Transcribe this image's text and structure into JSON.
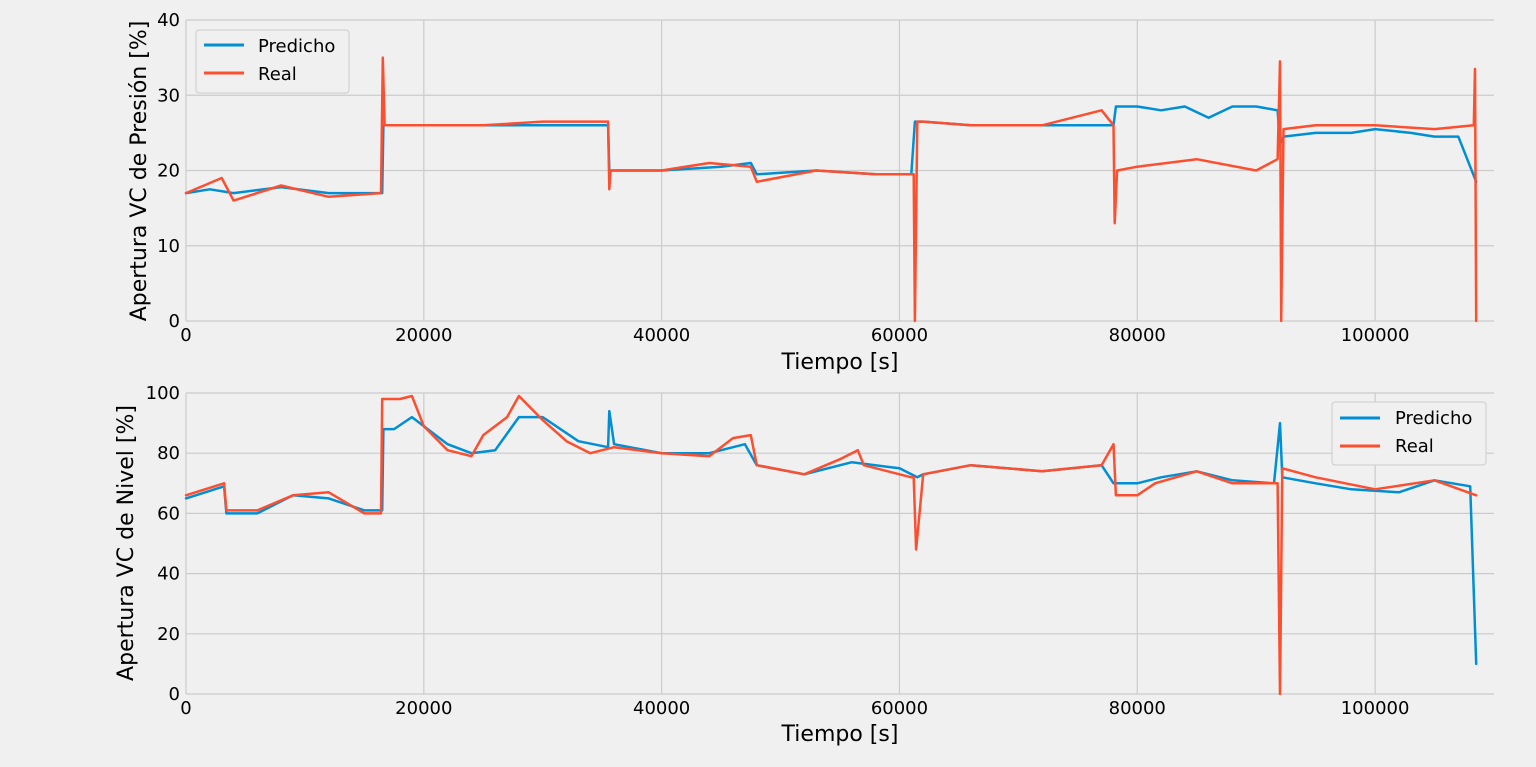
{
  "chart_data": [
    {
      "type": "line",
      "title": "",
      "xlabel": "Tiempo [s]",
      "ylabel": "Apertura VC de Presión [%]",
      "xlim": [
        0,
        110000
      ],
      "ylim": [
        0,
        40
      ],
      "xticks": [
        0,
        20000,
        40000,
        60000,
        80000,
        100000
      ],
      "yticks": [
        0,
        10,
        20,
        30,
        40
      ],
      "grid": true,
      "legend_position": "upper-left",
      "series": [
        {
          "name": "Predicho",
          "color": "#008fd5",
          "x": [
            0,
            2000,
            4000,
            8000,
            12000,
            16500,
            16600,
            17000,
            25000,
            35500,
            35600,
            36000,
            40000,
            45000,
            47500,
            48000,
            53000,
            58000,
            61000,
            61300,
            62000,
            66000,
            72000,
            78000,
            78200,
            80000,
            82000,
            84000,
            86000,
            88000,
            90000,
            91800,
            92000,
            92300,
            95000,
            98000,
            100000,
            103000,
            105000,
            107000,
            108500
          ],
          "values": [
            17,
            17.5,
            17,
            17.8,
            17,
            17,
            26,
            26,
            26,
            26,
            20,
            20,
            20,
            20.5,
            21,
            19.5,
            20,
            19.5,
            19.5,
            26.5,
            26.5,
            26,
            26,
            26,
            28.5,
            28.5,
            28,
            28.5,
            27,
            28.5,
            28.5,
            28,
            23.5,
            24.5,
            25,
            25,
            25.5,
            25,
            24.5,
            24.5,
            18.5
          ]
        },
        {
          "name": "Real",
          "color": "#fc4f30",
          "x": [
            0,
            3000,
            4000,
            8000,
            12000,
            16400,
            16550,
            16700,
            17000,
            25000,
            30000,
            35500,
            35600,
            35700,
            36000,
            40000,
            44000,
            47500,
            48000,
            53000,
            58000,
            61200,
            61300,
            61500,
            62000,
            66000,
            72000,
            77000,
            78000,
            78100,
            78300,
            80000,
            85000,
            90000,
            91800,
            92000,
            92100,
            92300,
            95000,
            100000,
            105000,
            108300,
            108400,
            108500
          ],
          "values": [
            17,
            19,
            16,
            18,
            16.5,
            17,
            35,
            26,
            26,
            26,
            26.5,
            26.5,
            17.5,
            20,
            20,
            20,
            21,
            20.5,
            18.5,
            20,
            19.5,
            19.5,
            0,
            26.5,
            26.5,
            26,
            26,
            28,
            26,
            13,
            20,
            20.5,
            21.5,
            20,
            21.5,
            34.5,
            0,
            25.5,
            26,
            26,
            25.5,
            26,
            33.5,
            0
          ]
        }
      ]
    },
    {
      "type": "line",
      "title": "",
      "xlabel": "Tiempo [s]",
      "ylabel": "Apertura VC de Nivel [%]",
      "xlim": [
        0,
        110000
      ],
      "ylim": [
        0,
        100
      ],
      "xticks": [
        0,
        20000,
        40000,
        60000,
        80000,
        100000
      ],
      "yticks": [
        0,
        20,
        40,
        60,
        80,
        100
      ],
      "grid": true,
      "legend_position": "upper-right",
      "series": [
        {
          "name": "Predicho",
          "color": "#008fd5",
          "x": [
            0,
            3200,
            3400,
            6000,
            9000,
            12000,
            15000,
            16500,
            16600,
            17500,
            19000,
            22000,
            24000,
            26000,
            28000,
            30000,
            33000,
            35500,
            35600,
            36000,
            40000,
            44000,
            47000,
            48000,
            52000,
            56000,
            60000,
            61500,
            62000,
            66000,
            72000,
            77000,
            78000,
            80000,
            82000,
            85000,
            88000,
            91500,
            92000,
            92200,
            95000,
            98000,
            102000,
            105000,
            108000,
            108500
          ],
          "values": [
            65,
            69,
            60,
            60,
            66,
            65,
            61,
            61,
            88,
            88,
            92,
            83,
            80,
            81,
            92,
            92,
            84,
            82,
            94,
            83,
            80,
            80,
            83,
            76,
            73,
            77,
            75,
            72,
            73,
            76,
            74,
            76,
            70,
            70,
            72,
            74,
            71,
            70,
            90,
            72,
            70,
            68,
            67,
            71,
            69,
            10
          ]
        },
        {
          "name": "Real",
          "color": "#fc4f30",
          "x": [
            0,
            3200,
            3400,
            6000,
            9000,
            12000,
            15000,
            16400,
            16500,
            18000,
            19000,
            20000,
            22000,
            24000,
            25000,
            27000,
            28000,
            30000,
            32000,
            34000,
            36000,
            40000,
            44000,
            46000,
            47500,
            48000,
            52000,
            55000,
            56500,
            57000,
            61000,
            61200,
            61400,
            62000,
            66000,
            72000,
            77000,
            78000,
            78200,
            80000,
            81500,
            85000,
            88000,
            91800,
            92000,
            92200,
            95000,
            100000,
            105000,
            108500
          ],
          "values": [
            66,
            70,
            61,
            61,
            66,
            67,
            60,
            60,
            98,
            98,
            99,
            89,
            81,
            79,
            86,
            92,
            99,
            91,
            84,
            80,
            82,
            80,
            79,
            85,
            86,
            76,
            73,
            78,
            81,
            76,
            72,
            72,
            48,
            73,
            76,
            74,
            76,
            83,
            66,
            66,
            70,
            74,
            70,
            70,
            0,
            75,
            72,
            68,
            71,
            66
          ]
        }
      ]
    }
  ]
}
